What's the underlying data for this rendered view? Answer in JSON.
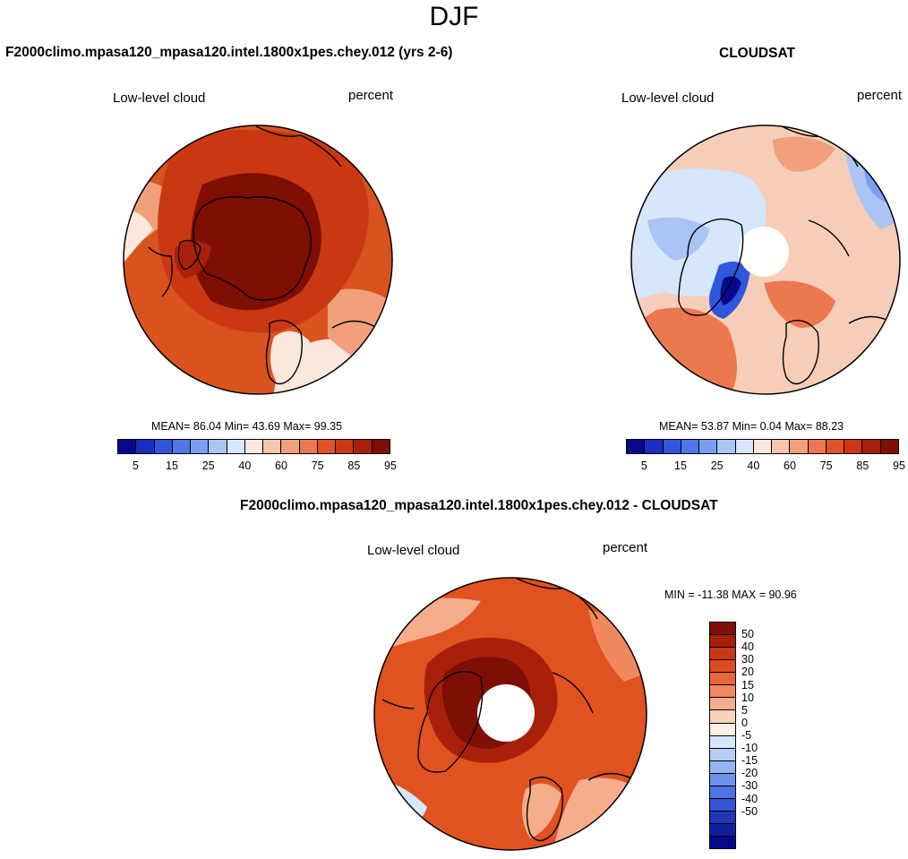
{
  "figure": {
    "season": "DJF",
    "colors": {
      "map_land_outline": "#000000",
      "pole_hole": "#ffffff"
    }
  },
  "panel_model": {
    "title": "F2000climo.mpasa120_mpasa120.intel.1800x1pes.chey.012 (yrs 2-6)",
    "variable": "Low-level cloud",
    "units": "percent",
    "stats": {
      "mean_label": "MEAN=",
      "mean": "86.04",
      "min_label": "Min=",
      "min": "43.69",
      "max_label": "Max=",
      "max": "99.35"
    },
    "fill_base": "#d9531e",
    "colorbar": {
      "colors": [
        "#08088c",
        "#1a2fbe",
        "#2f57dd",
        "#4e78e8",
        "#7c9ef0",
        "#a9c4f5",
        "#d6e6fb",
        "#fbe7db",
        "#f7c6ab",
        "#f2a07c",
        "#ec7850",
        "#e05327",
        "#c93813",
        "#a9200a",
        "#7f0e05"
      ],
      "ticks": [
        "5",
        "15",
        "25",
        "40",
        "60",
        "75",
        "85",
        "95"
      ]
    }
  },
  "panel_obs": {
    "title": "CLOUDSAT",
    "variable": "Low-level cloud",
    "units": "percent",
    "stats": {
      "mean_label": "MEAN=",
      "mean": "53.87",
      "min_label": "Min=",
      "min": "0.04",
      "max_label": "Max=",
      "max": "88.23"
    },
    "fill_base": "#f6cdb8",
    "colorbar": {
      "colors": [
        "#08088c",
        "#1a2fbe",
        "#2f57dd",
        "#4e78e8",
        "#7c9ef0",
        "#a9c4f5",
        "#d6e6fb",
        "#fbe7db",
        "#f7c6ab",
        "#f2a07c",
        "#ec7850",
        "#e05327",
        "#c93813",
        "#a9200a",
        "#7f0e05"
      ],
      "ticks": [
        "5",
        "15",
        "25",
        "40",
        "60",
        "75",
        "85",
        "95"
      ]
    }
  },
  "panel_diff": {
    "title": "F2000climo.mpasa120_mpasa120.intel.1800x1pes.chey.012 - CLOUDSAT",
    "variable": "Low-level cloud",
    "units": "percent",
    "stats": {
      "text": "MIN = -11.38 MAX =  90.96"
    },
    "fill_base": "#e0521f",
    "colorbar": {
      "colors": [
        "#7f0e05",
        "#a9200a",
        "#c93813",
        "#dd4c21",
        "#e8683a",
        "#f08a5e",
        "#f5ad8c",
        "#f9d3bd",
        "#fcefe6",
        "#d6e6fb",
        "#b6cff7",
        "#95b5f2",
        "#6f93ec",
        "#4f73e3",
        "#3554d3",
        "#2038b8",
        "#10209a",
        "#08088c"
      ],
      "ticks": [
        "50",
        "40",
        "30",
        "20",
        "15",
        "10",
        "5",
        "0",
        "-5",
        "-10",
        "-15",
        "-20",
        "-30",
        "-40",
        "-50"
      ]
    }
  }
}
